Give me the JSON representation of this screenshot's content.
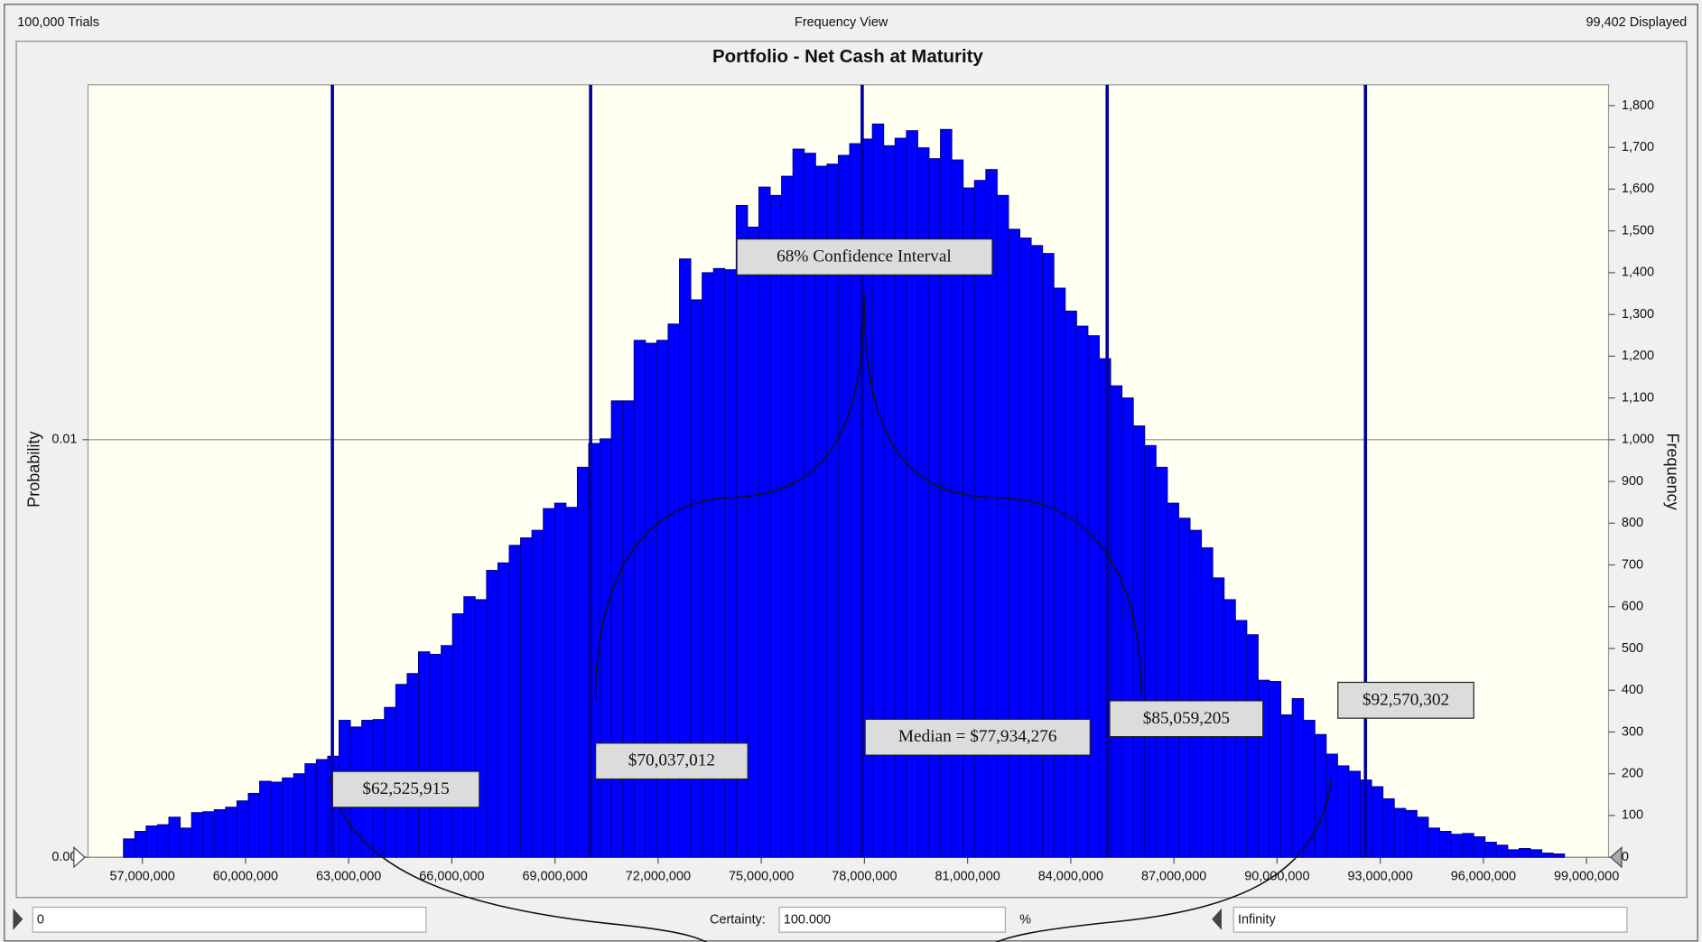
{
  "header": {
    "trials": "100,000 Trials",
    "view": "Frequency View",
    "displayed": "99,402 Displayed"
  },
  "chart_data": {
    "type": "histogram",
    "title": "Portfolio - Net Cash at Maturity",
    "ylabel": "Probability",
    "y2label": "Frequency",
    "bins": [
      56450000,
      56780000,
      57110000,
      57440000,
      57770000,
      58100000,
      58430000,
      58760000,
      59090000,
      59420000,
      59750000,
      60080000,
      60410000,
      60740000,
      61070000,
      61400000,
      61730000,
      62060000,
      62390000,
      62720000,
      63050000,
      63380000,
      63710000,
      64040000,
      64370000,
      64700000,
      65030000,
      65360000,
      65690000,
      66020000,
      66350000,
      66680000,
      67010000,
      67340000,
      67670000,
      68000000,
      68330000,
      68660000,
      68990000,
      69320000,
      69650000,
      69980000,
      70310000,
      70640000,
      70970000,
      71300000,
      71630000,
      71960000,
      72290000,
      72620000,
      72950000,
      73280000,
      73610000,
      73940000,
      74270000,
      74600000,
      74930000,
      75260000,
      75590000,
      75920000,
      76250000,
      76580000,
      76910000,
      77240000,
      77570000,
      77900000,
      78230000,
      78560000,
      78890000,
      79220000,
      79550000,
      79880000,
      80210000,
      80540000,
      80870000,
      81200000,
      81530000,
      81860000,
      82190000,
      82520000,
      82850000,
      83180000,
      83510000,
      83840000,
      84170000,
      84500000,
      84830000,
      85160000,
      85490000,
      85820000,
      86150000,
      86480000,
      86810000,
      87140000,
      87470000,
      87800000,
      88130000,
      88460000,
      88790000,
      89120000,
      89450000,
      89780000,
      90110000,
      90440000,
      90770000,
      91100000,
      91430000,
      91760000,
      92090000,
      92420000,
      92750000,
      93080000,
      93410000,
      93740000,
      94070000,
      94400000,
      94730000,
      95060000,
      95390000,
      95720000,
      96050000,
      96380000,
      96710000,
      97040000,
      97370000,
      97700000,
      98030000,
      98360000
    ],
    "series": [
      {
        "color": "#0000ff",
        "axis": "y2",
        "values": [
          44,
          62,
          75,
          78,
          96,
          70,
          107,
          109,
          114,
          120,
          135,
          153,
          182,
          180,
          190,
          200,
          224,
          234,
          242,
          328,
          312,
          328,
          330,
          359,
          414,
          440,
          492,
          486,
          507,
          583,
          624,
          617,
          687,
          705,
          747,
          765,
          783,
          835,
          848,
          838,
          934,
          991,
          1002,
          1093,
          1093,
          1238,
          1231,
          1238,
          1277,
          1433,
          1335,
          1400,
          1410,
          1407,
          1561,
          1509,
          1605,
          1585,
          1631,
          1696,
          1686,
          1655,
          1660,
          1681,
          1709,
          1720,
          1756,
          1704,
          1722,
          1740,
          1699,
          1673,
          1743,
          1670,
          1603,
          1621,
          1647,
          1585,
          1504,
          1483,
          1465,
          1446,
          1363,
          1308,
          1272,
          1249,
          1194,
          1129,
          1100,
          1033,
          986,
          934,
          848,
          812,
          783,
          741,
          669,
          617,
          567,
          533,
          424,
          421,
          341,
          380,
          328,
          294,
          247,
          219,
          206,
          185,
          169,
          140,
          117,
          112,
          96,
          70,
          62,
          55,
          57,
          49,
          36,
          29,
          18,
          21,
          18,
          10,
          8
        ]
      }
    ],
    "xlim": [
      55420000,
      99640000
    ],
    "xticks": [
      {
        "value": 57000000,
        "label": "57,000,000"
      },
      {
        "value": 60000000,
        "label": "60,000,000"
      },
      {
        "value": 63000000,
        "label": "63,000,000"
      },
      {
        "value": 66000000,
        "label": "66,000,000"
      },
      {
        "value": 69000000,
        "label": "69,000,000"
      },
      {
        "value": 72000000,
        "label": "72,000,000"
      },
      {
        "value": 75000000,
        "label": "75,000,000"
      },
      {
        "value": 78000000,
        "label": "78,000,000"
      },
      {
        "value": 81000000,
        "label": "81,000,000"
      },
      {
        "value": 84000000,
        "label": "84,000,000"
      },
      {
        "value": 87000000,
        "label": "87,000,000"
      },
      {
        "value": 90000000,
        "label": "90,000,000"
      },
      {
        "value": 93000000,
        "label": "93,000,000"
      },
      {
        "value": 96000000,
        "label": "96,000,000"
      },
      {
        "value": 99000000,
        "label": "99,000,000"
      }
    ],
    "ylim": [
      0,
      0.0185
    ],
    "yticks": [
      {
        "value": 0,
        "label": "0.00"
      },
      0.01
    ],
    "y2lim": [
      0,
      1850
    ],
    "y2ticks": [
      0,
      100,
      200,
      300,
      400,
      500,
      600,
      700,
      800,
      900,
      {
        "value": 1000,
        "label": "1,000"
      },
      {
        "value": 1100,
        "label": "1,100"
      },
      {
        "value": 1200,
        "label": "1,200"
      },
      {
        "value": 1300,
        "label": "1,300"
      },
      {
        "value": 1400,
        "label": "1,400"
      },
      {
        "value": 1500,
        "label": "1,500"
      },
      {
        "value": 1600,
        "label": "1,600"
      },
      {
        "value": 1700,
        "label": "1,700"
      },
      {
        "value": 1800,
        "label": "1,800"
      }
    ],
    "grid": true,
    "markers": [
      {
        "value": 62525915,
        "label": "$62,525,915"
      },
      {
        "value": 70037012,
        "label": "$70,037,012"
      },
      {
        "value": 77934276,
        "label": "Median = $77,934,276"
      },
      {
        "value": 85059205,
        "label": "$85,059,205"
      },
      {
        "value": 92570302,
        "label": "$92,570,302"
      }
    ],
    "marker_color": "#00009c",
    "annotation": "68% Confidence Interval"
  },
  "controls": {
    "lower": "0",
    "certainty_label": "Certainty:",
    "certainty": "100.000",
    "unit": "%",
    "upper": "Infinity"
  }
}
